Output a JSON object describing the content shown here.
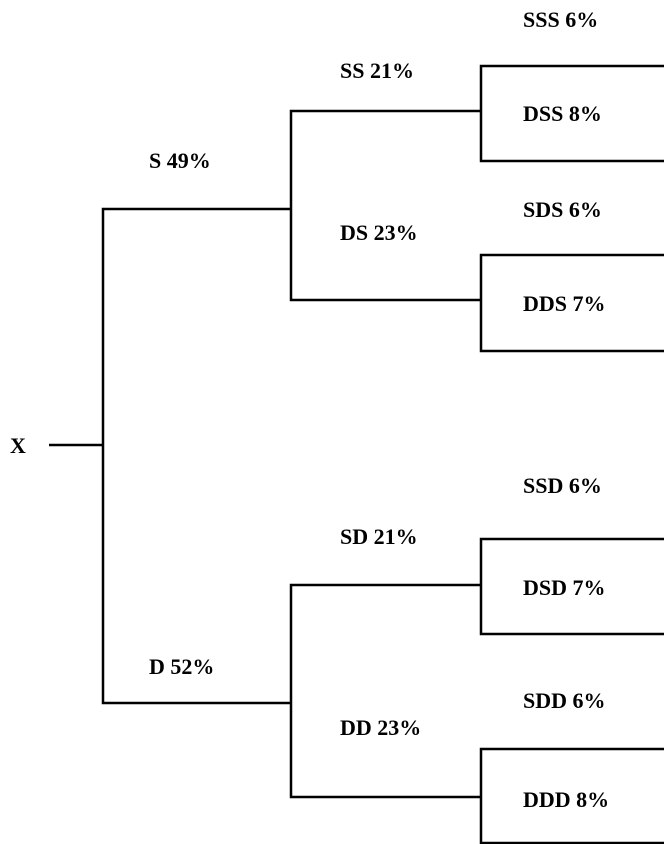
{
  "root": "X",
  "level1": [
    "S 49%",
    "D 52%"
  ],
  "level2": [
    "SS 21%",
    "DS 23%",
    "SD 21%",
    "DD 23%"
  ],
  "leaves": [
    "SSS 6%",
    "DSS 8%",
    "SDS 6%",
    "DDS 7%",
    "SSD 6%",
    "DSD 7%",
    "SDD 6%",
    "DDD 8%"
  ]
}
